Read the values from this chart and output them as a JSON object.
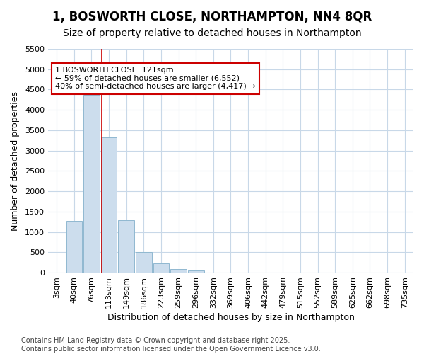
{
  "title": "1, BOSWORTH CLOSE, NORTHAMPTON, NN4 8QR",
  "subtitle": "Size of property relative to detached houses in Northampton",
  "xlabel": "Distribution of detached houses by size in Northampton",
  "ylabel": "Number of detached properties",
  "footer_line1": "Contains HM Land Registry data © Crown copyright and database right 2025.",
  "footer_line2": "Contains public sector information licensed under the Open Government Licence v3.0.",
  "bins": [
    "3sqm",
    "40sqm",
    "76sqm",
    "113sqm",
    "149sqm",
    "186sqm",
    "223sqm",
    "259sqm",
    "296sqm",
    "332sqm",
    "369sqm",
    "406sqm",
    "442sqm",
    "479sqm",
    "515sqm",
    "552sqm",
    "589sqm",
    "625sqm",
    "662sqm",
    "698sqm",
    "735sqm"
  ],
  "values": [
    0,
    1270,
    4370,
    3320,
    1290,
    500,
    230,
    90,
    50,
    0,
    0,
    0,
    0,
    0,
    0,
    0,
    0,
    0,
    0,
    0,
    0
  ],
  "bar_color": "#ccdded",
  "bar_edge_color": "#90b8d0",
  "vline_color": "#cc0000",
  "vline_x": 2.57,
  "annotation_text": "1 BOSWORTH CLOSE: 121sqm\n← 59% of detached houses are smaller (6,552)\n40% of semi-detached houses are larger (4,417) →",
  "annotation_box_facecolor": "#ffffff",
  "annotation_box_edgecolor": "#cc0000",
  "ylim": [
    0,
    5500
  ],
  "yticks": [
    0,
    500,
    1000,
    1500,
    2000,
    2500,
    3000,
    3500,
    4000,
    4500,
    5000,
    5500
  ],
  "bg_color": "#ffffff",
  "plot_bg_color": "#ffffff",
  "grid_color": "#c8d8e8",
  "title_fontsize": 12,
  "subtitle_fontsize": 10,
  "axis_label_fontsize": 9,
  "tick_fontsize": 8,
  "footer_fontsize": 7,
  "annotation_fontsize": 8
}
